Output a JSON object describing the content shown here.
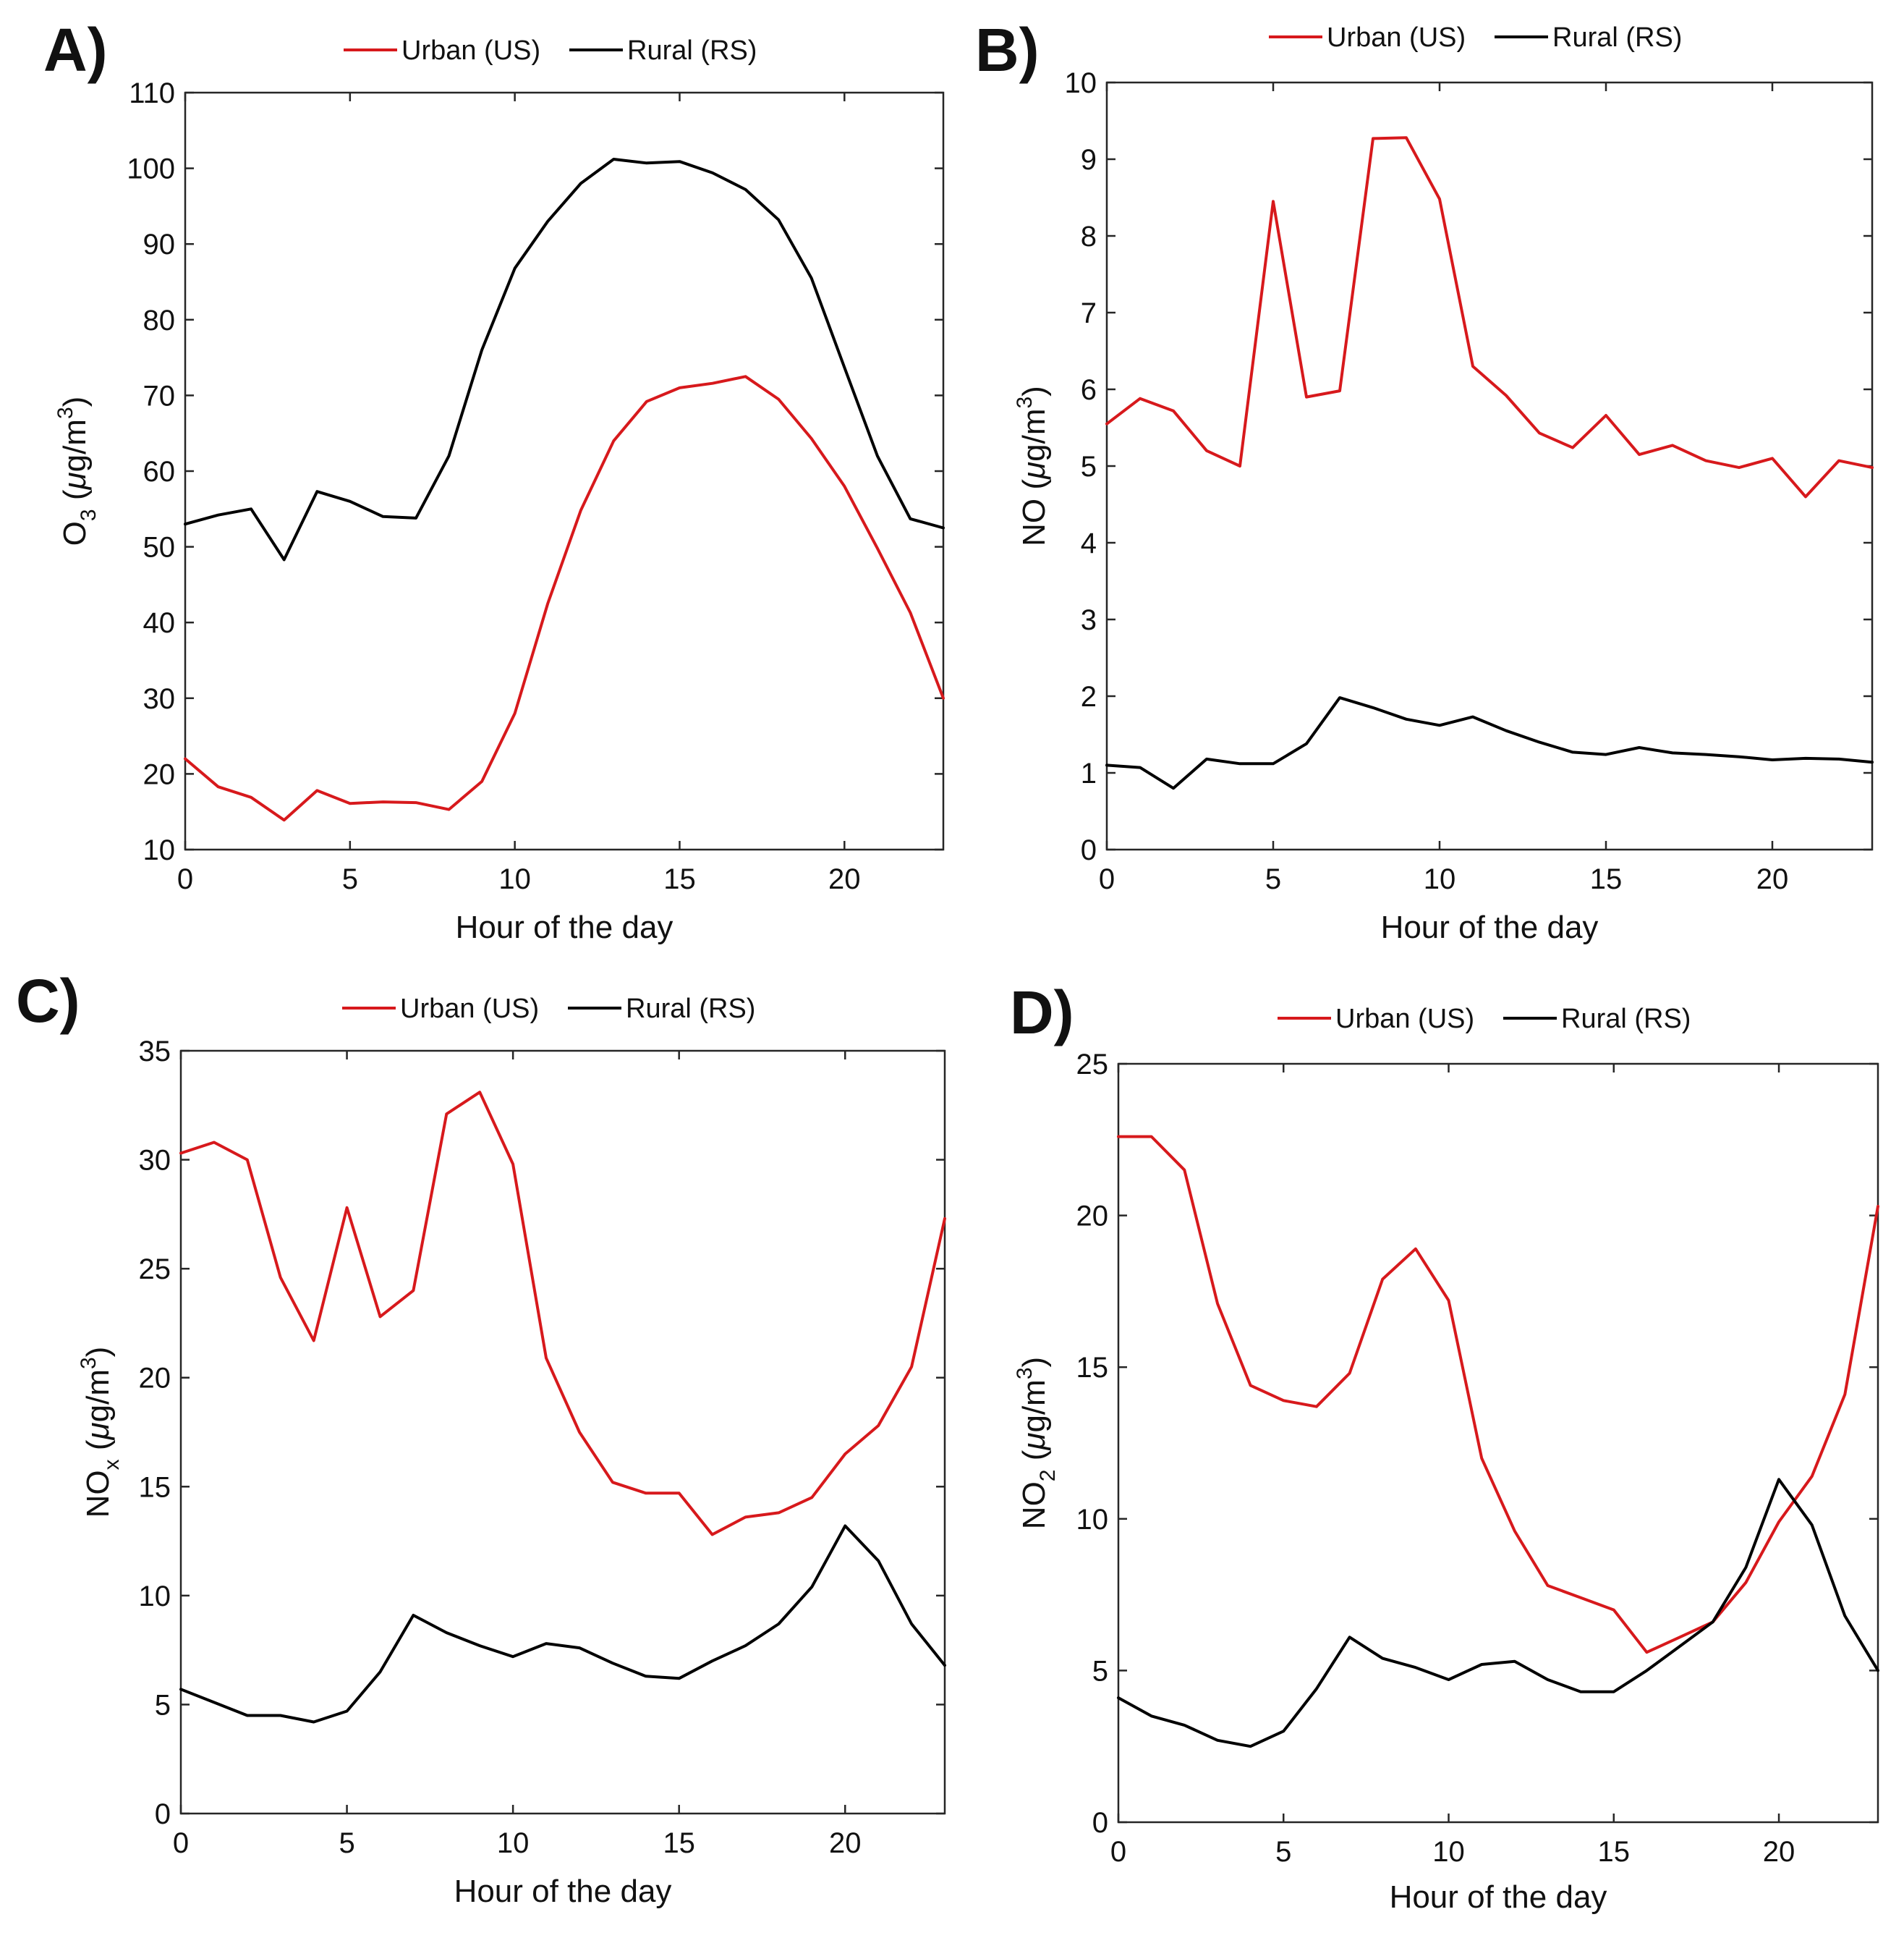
{
  "figure": {
    "panels": [
      {
        "letter": "A)",
        "ylabel": {
          "base": "O",
          "sub": "3",
          "pre_unit": " (",
          "mu": "μ",
          "unit": "g/m",
          "sup": "3",
          "close": ")"
        }
      },
      {
        "letter": "B)",
        "ylabel": {
          "base": "NO",
          "sub": "",
          "pre_unit": " (",
          "mu": "μ",
          "unit": "g/m",
          "sup": "3",
          "close": ")"
        }
      },
      {
        "letter": "C)",
        "ylabel": {
          "base": "NO",
          "sub": "x",
          "pre_unit": " (",
          "mu": "μ",
          "unit": "g/m",
          "sup": "3",
          "close": ")"
        }
      },
      {
        "letter": "D)",
        "ylabel": {
          "base": "NO",
          "sub": "2",
          "pre_unit": " (",
          "mu": "μ",
          "unit": "g/m",
          "sup": "3",
          "close": ")"
        }
      }
    ]
  },
  "colors": {
    "urban": "#d7191c",
    "rural": "#000000",
    "axis": "#262626"
  },
  "chart_data": [
    {
      "type": "line",
      "title": "A)",
      "xlabel": "Hour of the day",
      "ylabel": "O3 (μg/m3)",
      "xlim": [
        0,
        23
      ],
      "ylim": [
        10,
        110
      ],
      "xticks": [
        0,
        5,
        10,
        15,
        20
      ],
      "yticks": [
        10,
        20,
        30,
        40,
        50,
        60,
        70,
        80,
        90,
        100,
        110
      ],
      "legend_position": "top-center",
      "x": [
        0,
        1,
        2,
        3,
        4,
        5,
        6,
        7,
        8,
        9,
        10,
        11,
        12,
        13,
        14,
        15,
        16,
        17,
        18,
        19,
        20,
        21,
        22,
        23
      ],
      "series": [
        {
          "name": "Urban (US)",
          "color": "#d7191c",
          "values": [
            22.0,
            18.3,
            16.9,
            13.9,
            17.8,
            16.1,
            16.3,
            16.2,
            15.3,
            19.0,
            28.0,
            42.5,
            54.8,
            64.0,
            69.2,
            71.0,
            71.6,
            72.5,
            69.5,
            64.3,
            58.0,
            49.8,
            41.3,
            30.0
          ]
        },
        {
          "name": "Rural (RS)",
          "color": "#000000",
          "values": [
            53.0,
            54.2,
            55.0,
            48.3,
            57.3,
            56.0,
            54.0,
            53.8,
            62.0,
            76.0,
            86.8,
            93.0,
            98.0,
            101.2,
            100.7,
            100.9,
            99.4,
            97.2,
            93.2,
            85.5,
            73.7,
            62.0,
            53.7,
            52.5
          ]
        }
      ]
    },
    {
      "type": "line",
      "title": "B)",
      "xlabel": "Hour of the day",
      "ylabel": "NO (μg/m3)",
      "xlim": [
        0,
        23
      ],
      "ylim": [
        0,
        10
      ],
      "xticks": [
        0,
        5,
        10,
        15,
        20
      ],
      "yticks": [
        0,
        1,
        2,
        3,
        4,
        5,
        6,
        7,
        8,
        9,
        10
      ],
      "legend_position": "top-center",
      "x": [
        0,
        1,
        2,
        3,
        4,
        5,
        6,
        7,
        8,
        9,
        10,
        11,
        12,
        13,
        14,
        15,
        16,
        17,
        18,
        19,
        20,
        21,
        22,
        23
      ],
      "series": [
        {
          "name": "Urban (US)",
          "color": "#d7191c",
          "values": [
            5.55,
            5.88,
            5.72,
            5.2,
            5.0,
            8.45,
            5.9,
            5.98,
            9.27,
            9.28,
            8.48,
            6.3,
            5.92,
            5.43,
            5.24,
            5.66,
            5.15,
            5.27,
            5.07,
            4.98,
            5.1,
            4.6,
            5.07,
            4.98
          ]
        },
        {
          "name": "Rural (RS)",
          "color": "#000000",
          "values": [
            1.1,
            1.07,
            0.8,
            1.18,
            1.12,
            1.12,
            1.38,
            1.98,
            1.85,
            1.7,
            1.62,
            1.73,
            1.55,
            1.4,
            1.27,
            1.24,
            1.33,
            1.26,
            1.24,
            1.21,
            1.17,
            1.19,
            1.18,
            1.14
          ]
        }
      ]
    },
    {
      "type": "line",
      "title": "C)",
      "xlabel": "Hour of the day",
      "ylabel": "NOx (μg/m3)",
      "xlim": [
        0,
        23
      ],
      "ylim": [
        0,
        35
      ],
      "xticks": [
        0,
        5,
        10,
        15,
        20
      ],
      "yticks": [
        0,
        5,
        10,
        15,
        20,
        25,
        30,
        35
      ],
      "legend_position": "top-center",
      "x": [
        0,
        1,
        2,
        3,
        4,
        5,
        6,
        7,
        8,
        9,
        10,
        11,
        12,
        13,
        14,
        15,
        16,
        17,
        18,
        19,
        20,
        21,
        22,
        23
      ],
      "series": [
        {
          "name": "Urban (US)",
          "color": "#d7191c",
          "values": [
            30.3,
            30.8,
            30.0,
            24.6,
            21.7,
            27.8,
            22.8,
            24.0,
            32.1,
            33.1,
            29.8,
            20.9,
            17.5,
            15.2,
            14.7,
            14.7,
            12.8,
            13.6,
            13.8,
            14.5,
            16.5,
            17.8,
            20.5,
            27.3
          ]
        },
        {
          "name": "Rural (RS)",
          "color": "#000000",
          "values": [
            5.7,
            5.1,
            4.5,
            4.5,
            4.2,
            4.7,
            6.5,
            9.1,
            8.3,
            7.7,
            7.2,
            7.8,
            7.6,
            6.9,
            6.3,
            6.2,
            7.0,
            7.7,
            8.7,
            10.4,
            13.2,
            11.6,
            8.7,
            6.8
          ]
        }
      ]
    },
    {
      "type": "line",
      "title": "D)",
      "xlabel": "Hour of the day",
      "ylabel": "NO2 (μg/m3)",
      "xlim": [
        0,
        23
      ],
      "ylim": [
        0,
        25
      ],
      "xticks": [
        0,
        5,
        10,
        15,
        20
      ],
      "yticks": [
        0,
        5,
        10,
        15,
        20,
        25
      ],
      "legend_position": "top-center",
      "x": [
        0,
        1,
        2,
        3,
        4,
        5,
        6,
        7,
        8,
        9,
        10,
        11,
        12,
        13,
        14,
        15,
        16,
        17,
        18,
        19,
        20,
        21,
        22,
        23
      ],
      "series": [
        {
          "name": "Urban (US)",
          "color": "#d7191c",
          "values": [
            22.6,
            22.6,
            21.5,
            17.1,
            14.4,
            13.9,
            13.7,
            14.8,
            17.9,
            18.9,
            17.2,
            12.0,
            9.6,
            7.8,
            7.4,
            7.0,
            5.6,
            6.1,
            6.6,
            7.9,
            9.9,
            11.4,
            14.1,
            20.3
          ]
        },
        {
          "name": "Rural (RS)",
          "color": "#000000",
          "values": [
            4.1,
            3.5,
            3.2,
            2.7,
            2.5,
            3.0,
            4.4,
            6.1,
            5.4,
            5.1,
            4.7,
            5.2,
            5.3,
            4.7,
            4.3,
            4.3,
            5.0,
            5.8,
            6.6,
            8.4,
            11.3,
            9.8,
            6.8,
            5.0
          ]
        }
      ]
    }
  ]
}
